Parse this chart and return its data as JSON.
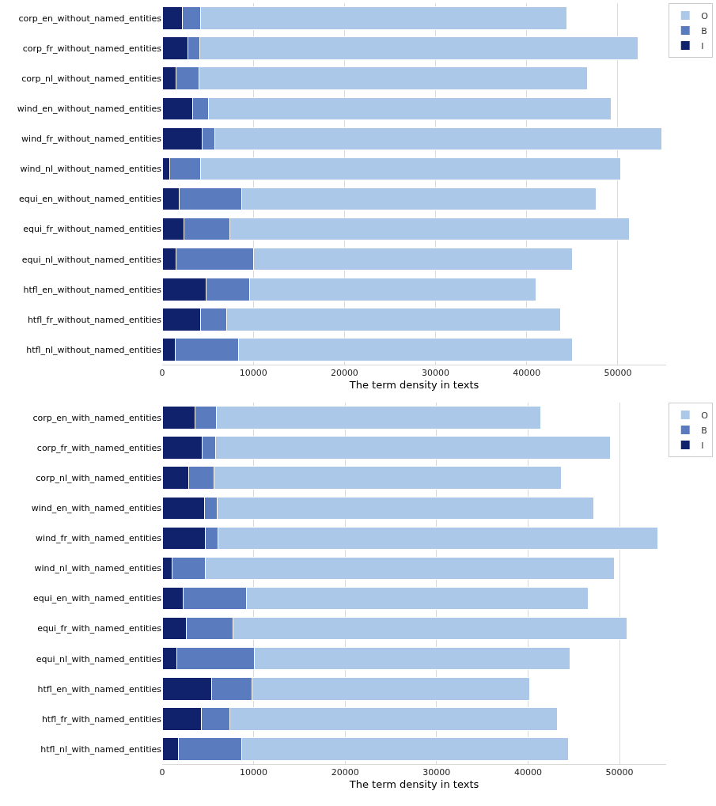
{
  "chart_data": [
    {
      "type": "bar",
      "orientation": "horizontal",
      "stacked": true,
      "xlabel": "The term density in texts",
      "categories": [
        "corp_en_without_named_entities",
        "corp_fr_without_named_entities",
        "corp_nl_without_named_entities",
        "wind_en_without_named_entities",
        "wind_fr_without_named_entities",
        "wind_nl_without_named_entities",
        "equi_en_without_named_entities",
        "equi_fr_without_named_entities",
        "equi_nl_without_named_entities",
        "htfl_en_without_named_entities",
        "htfl_fr_without_named_entities",
        "htfl_nl_without_named_entities"
      ],
      "series": [
        {
          "name": "I",
          "color": "#10226b",
          "values": [
            2200,
            2800,
            1500,
            3300,
            4400,
            800,
            1900,
            2400,
            1500,
            4800,
            4200,
            1400
          ]
        },
        {
          "name": "B",
          "color": "#5a7bbd",
          "values": [
            2000,
            1300,
            2500,
            1800,
            1400,
            3400,
            6800,
            5000,
            8500,
            4800,
            2900,
            7000
          ]
        },
        {
          "name": "O",
          "color": "#abc8e8",
          "values": [
            40200,
            48100,
            42700,
            44200,
            49000,
            46100,
            38900,
            43900,
            35000,
            31400,
            36600,
            36600
          ]
        }
      ],
      "xlim": [
        0,
        55300
      ],
      "xticks": [
        0,
        10000,
        20000,
        30000,
        40000,
        50000
      ],
      "grid": "x",
      "legend": "top right"
    },
    {
      "type": "bar",
      "orientation": "horizontal",
      "stacked": true,
      "xlabel": "The term density in texts",
      "categories": [
        "corp_en_with_named_entities",
        "corp_fr_with_named_entities",
        "corp_nl_with_named_entities",
        "wind_en_with_named_entities",
        "wind_fr_with_named_entities",
        "wind_nl_with_named_entities",
        "equi_en_with_named_entities",
        "equi_fr_with_named_entities",
        "equi_nl_with_named_entities",
        "htfl_en_with_named_entities",
        "htfl_fr_with_named_entities",
        "htfl_nl_with_named_entities"
      ],
      "series": [
        {
          "name": "I",
          "color": "#10226b",
          "values": [
            3600,
            4400,
            2900,
            4600,
            4700,
            1100,
            2300,
            2600,
            1600,
            5400,
            4300,
            1800
          ]
        },
        {
          "name": "B",
          "color": "#5a7bbd",
          "values": [
            2300,
            1400,
            2800,
            1400,
            1400,
            3600,
            6900,
            5100,
            8500,
            4400,
            3100,
            6900
          ]
        },
        {
          "name": "O",
          "color": "#abc8e8",
          "values": [
            35500,
            43200,
            37900,
            41200,
            48100,
            44700,
            37400,
            43100,
            34500,
            30400,
            35800,
            35700
          ]
        }
      ],
      "xlim": [
        0,
        55100
      ],
      "xticks": [
        0,
        10000,
        20000,
        30000,
        40000,
        50000
      ],
      "grid": "x",
      "legend": "top right"
    }
  ]
}
